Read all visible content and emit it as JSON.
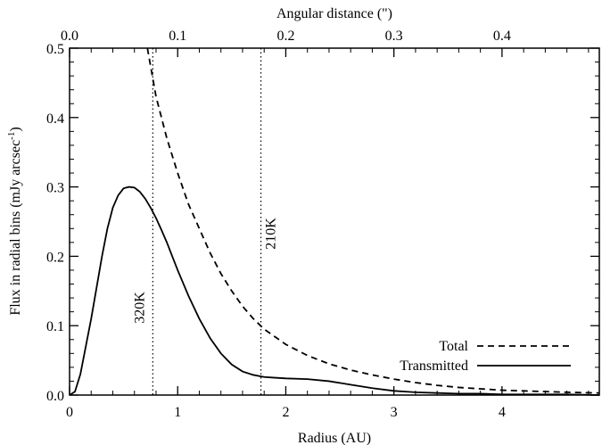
{
  "chart_data": {
    "type": "line",
    "xlabel": "Radius (AU)",
    "ylabel": "Flux in radial bins (mJy arcsec",
    "ylabel_sup": "-1",
    "ylabel_close": ")",
    "top_xlabel": "Angular distance (\")",
    "xlim": [
      0,
      4.9
    ],
    "ylim": [
      0,
      0.5
    ],
    "top_xlim": [
      0,
      0.49
    ],
    "xticks": [
      0,
      1,
      2,
      3,
      4
    ],
    "xtick_labels": [
      "0",
      "1",
      "2",
      "3",
      "4"
    ],
    "yticks": [
      0.0,
      0.1,
      0.2,
      0.3,
      0.4,
      0.5
    ],
    "ytick_labels": [
      "0.0",
      "0.1",
      "0.2",
      "0.3",
      "0.4",
      "0.5"
    ],
    "top_xticks": [
      0.0,
      0.1,
      0.2,
      0.3,
      0.4
    ],
    "top_xtick_labels": [
      "0.0",
      "0.1",
      "0.2",
      "0.3",
      "0.4"
    ],
    "grid": false,
    "legend_position": "bottom-right",
    "series": [
      {
        "name": "Total",
        "style": "dashed",
        "x": [
          0.72,
          0.8,
          0.9,
          1.0,
          1.1,
          1.2,
          1.3,
          1.4,
          1.5,
          1.6,
          1.7,
          1.8,
          2.0,
          2.2,
          2.4,
          2.6,
          2.8,
          3.0,
          3.2,
          3.4,
          3.6,
          3.8,
          4.0,
          4.2,
          4.4,
          4.6,
          4.9
        ],
        "y": [
          0.5,
          0.43,
          0.37,
          0.32,
          0.275,
          0.24,
          0.205,
          0.175,
          0.15,
          0.128,
          0.11,
          0.095,
          0.073,
          0.057,
          0.045,
          0.036,
          0.029,
          0.023,
          0.018,
          0.014,
          0.011,
          0.009,
          0.007,
          0.006,
          0.005,
          0.004,
          0.003
        ]
      },
      {
        "name": "Transmitted",
        "style": "solid",
        "x": [
          0.0,
          0.05,
          0.1,
          0.15,
          0.2,
          0.25,
          0.3,
          0.35,
          0.4,
          0.45,
          0.5,
          0.55,
          0.6,
          0.65,
          0.7,
          0.75,
          0.8,
          0.85,
          0.9,
          0.95,
          1.0,
          1.1,
          1.2,
          1.3,
          1.4,
          1.5,
          1.6,
          1.7,
          1.8,
          1.9,
          2.0,
          2.2,
          2.4,
          2.6,
          2.8,
          3.0,
          3.2,
          3.4,
          3.6,
          3.8,
          4.0,
          4.2,
          4.4,
          4.6,
          4.9
        ],
        "y": [
          0.0,
          0.005,
          0.03,
          0.07,
          0.11,
          0.155,
          0.2,
          0.24,
          0.27,
          0.288,
          0.298,
          0.3,
          0.299,
          0.293,
          0.283,
          0.27,
          0.255,
          0.238,
          0.22,
          0.2,
          0.18,
          0.143,
          0.11,
          0.082,
          0.06,
          0.044,
          0.034,
          0.029,
          0.026,
          0.025,
          0.024,
          0.023,
          0.02,
          0.015,
          0.01,
          0.006,
          0.004,
          0.003,
          0.002,
          0.002,
          0.001,
          0.001,
          0.001,
          0.001,
          0.0
        ]
      }
    ],
    "vlines": [
      {
        "x": 0.77,
        "label": "320K"
      },
      {
        "x": 1.77,
        "label": "210K"
      }
    ]
  }
}
